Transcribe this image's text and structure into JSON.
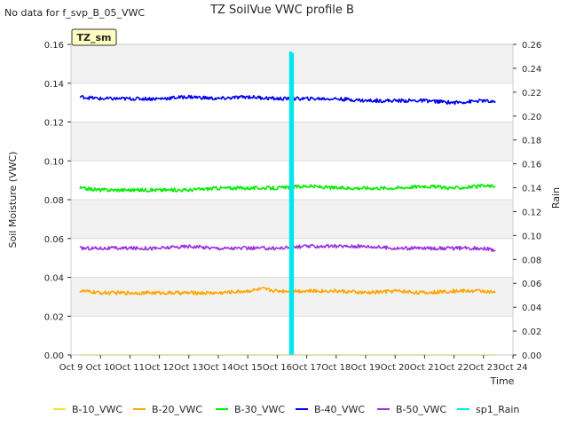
{
  "top_left_note": "No data for f_svp_B_05_VWC",
  "chart_data": {
    "type": "line",
    "title": "TZ SoilVue VWC profile B",
    "site_badge": "TZ_sm",
    "xlabel": "Time",
    "ylabel": "Soil Moisture (VWC)",
    "y2label": "Rain",
    "x_ticks": [
      "Oct 9",
      "Oct 10",
      "Oct 11",
      "Oct 12",
      "Oct 13",
      "Oct 14",
      "Oct 15",
      "Oct 16",
      "Oct 17",
      "Oct 18",
      "Oct 19",
      "Oct 20",
      "Oct 21",
      "Oct 22",
      "Oct 23",
      "Oct 24"
    ],
    "xlim_days": [
      9,
      24
    ],
    "ylim": [
      0,
      0.16
    ],
    "y_ticks": [
      "0.00",
      "0.02",
      "0.04",
      "0.06",
      "0.08",
      "0.10",
      "0.12",
      "0.14",
      "0.16"
    ],
    "y2lim": [
      0,
      0.26
    ],
    "y2_ticks": [
      "0.00",
      "0.02",
      "0.04",
      "0.06",
      "0.08",
      "0.10",
      "0.12",
      "0.14",
      "0.16",
      "0.18",
      "0.20",
      "0.22",
      "0.24",
      "0.26"
    ],
    "grid": true,
    "legend_position": "bottom",
    "series": [
      {
        "name": "B-10_VWC",
        "color": "#f2e533",
        "axis": "left",
        "x": [
          9.3,
          23.4
        ],
        "y": [
          0.0,
          0.0
        ]
      },
      {
        "name": "B-20_VWC",
        "color": "#ffa500",
        "axis": "left",
        "x": [
          9.3,
          10.0,
          11.0,
          12.0,
          13.0,
          14.0,
          15.0,
          15.5,
          16.0,
          16.5,
          17.0,
          18.0,
          19.0,
          20.0,
          21.0,
          22.0,
          23.0,
          23.4
        ],
        "y": [
          0.033,
          0.032,
          0.032,
          0.032,
          0.032,
          0.032,
          0.033,
          0.034,
          0.033,
          0.033,
          0.033,
          0.033,
          0.032,
          0.033,
          0.032,
          0.033,
          0.033,
          0.032
        ]
      },
      {
        "name": "B-30_VWC",
        "color": "#00ee00",
        "axis": "left",
        "x": [
          9.3,
          10.0,
          11.0,
          12.0,
          13.0,
          14.0,
          15.0,
          16.0,
          17.0,
          18.0,
          19.0,
          20.0,
          21.0,
          22.0,
          23.0,
          23.4
        ],
        "y": [
          0.086,
          0.085,
          0.085,
          0.085,
          0.085,
          0.086,
          0.086,
          0.086,
          0.087,
          0.086,
          0.086,
          0.086,
          0.087,
          0.086,
          0.087,
          0.087
        ]
      },
      {
        "name": "B-40_VWC",
        "color": "#0000ee",
        "axis": "left",
        "x": [
          9.3,
          10.0,
          11.0,
          12.0,
          13.0,
          14.0,
          15.0,
          16.0,
          17.0,
          18.0,
          19.0,
          20.0,
          21.0,
          22.0,
          23.0,
          23.4
        ],
        "y": [
          0.133,
          0.132,
          0.132,
          0.132,
          0.133,
          0.132,
          0.133,
          0.132,
          0.132,
          0.132,
          0.131,
          0.131,
          0.131,
          0.13,
          0.131,
          0.13
        ]
      },
      {
        "name": "B-50_VWC",
        "color": "#9b30e0",
        "axis": "left",
        "x": [
          9.3,
          10.0,
          11.0,
          12.0,
          13.0,
          14.0,
          15.0,
          16.0,
          17.0,
          18.0,
          19.0,
          20.0,
          21.0,
          22.0,
          23.0,
          23.4
        ],
        "y": [
          0.055,
          0.055,
          0.055,
          0.055,
          0.056,
          0.055,
          0.055,
          0.055,
          0.056,
          0.056,
          0.056,
          0.055,
          0.055,
          0.055,
          0.055,
          0.054
        ]
      },
      {
        "name": "sp1_Rain",
        "color": "#00e5ee",
        "axis": "right",
        "type": "bar",
        "x": [
          16.45,
          16.52
        ],
        "y": [
          0.254,
          0.253
        ]
      }
    ]
  }
}
